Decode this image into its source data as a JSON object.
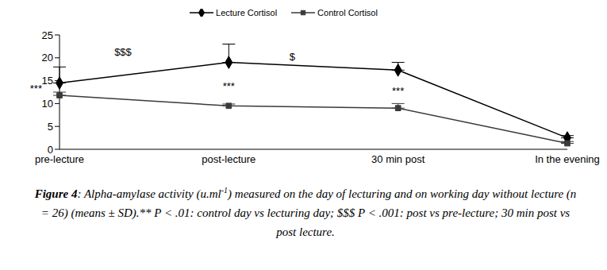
{
  "chart_data": {
    "type": "line",
    "categories": [
      "pre-lecture",
      "post-lecture",
      "30 min post",
      "In the evening"
    ],
    "series": [
      {
        "name": "Lecture Cortisol",
        "color": "#000000",
        "marker": "diamond",
        "values": [
          14.5,
          19,
          17.3,
          2.5
        ],
        "sd": [
          3.5,
          4,
          1.7,
          0.5
        ]
      },
      {
        "name": "Control Cortisol",
        "color": "#3a3a3a",
        "marker": "square",
        "values": [
          11.8,
          9.5,
          9,
          1.3
        ],
        "sd": [
          0.7,
          0.4,
          1,
          0.4
        ]
      }
    ],
    "ylim": [
      0,
      25
    ],
    "yticks": [
      0,
      5,
      10,
      15,
      20,
      25
    ],
    "grid": false,
    "legend": "top",
    "annotations": [
      {
        "text": "***",
        "x": [
          "pre-lecture"
        ],
        "y": 12.5
      },
      {
        "text": "$$$",
        "x": [
          "pre-lecture",
          "post-lecture"
        ],
        "y": 20.5
      },
      {
        "text": "***",
        "x": [
          "post-lecture"
        ],
        "y": 13
      },
      {
        "text": "$",
        "x": [
          "post-lecture",
          "30 min post"
        ],
        "y": 19.5
      },
      {
        "text": "***",
        "x": [
          "30 min post"
        ],
        "y": 12
      }
    ],
    "caption": {
      "label": "Figure 4",
      "parts": [
        ": Alpha-amylase activity (u.ml",
        "-1",
        ") measured on the day of lecturing and on working day without lecture (n = 26) (means ± SD).** P < .01: control day vs lecturing day; $$$ P < .001: post vs pre-lecture; 30 min post vs post lecture."
      ]
    }
  }
}
